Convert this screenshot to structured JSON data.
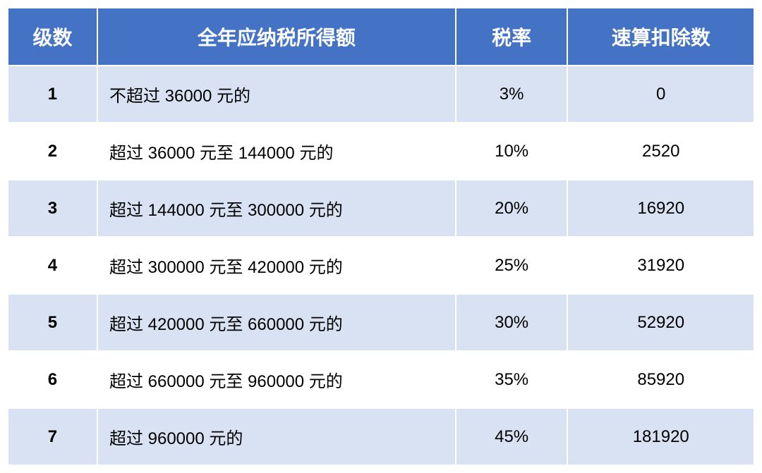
{
  "table": {
    "header_bg": "#4472c4",
    "header_color": "#ffffff",
    "row_odd_bg": "#d9e2f3",
    "row_even_bg": "#ffffff",
    "header_fontsize": 28,
    "cell_fontsize": 24,
    "text_color": "#000000",
    "columns": [
      "级数",
      "全年应纳税所得额",
      "税率",
      "速算扣除数"
    ],
    "rows": [
      {
        "level": "1",
        "desc": "不超过 36000 元的",
        "rate": "3%",
        "deduct": "0"
      },
      {
        "level": "2",
        "desc": "超过 36000 元至 144000 元的",
        "rate": "10%",
        "deduct": "2520"
      },
      {
        "level": "3",
        "desc": "超过 144000 元至 300000 元的",
        "rate": "20%",
        "deduct": "16920"
      },
      {
        "level": "4",
        "desc": "超过 300000 元至 420000 元的",
        "rate": "25%",
        "deduct": "31920"
      },
      {
        "level": "5",
        "desc": "超过 420000 元至 660000 元的",
        "rate": "30%",
        "deduct": "52920"
      },
      {
        "level": "6",
        "desc": "超过 660000 元至 960000 元的",
        "rate": "35%",
        "deduct": "85920"
      },
      {
        "level": "7",
        "desc": "超过 960000 元的",
        "rate": "45%",
        "deduct": "181920"
      }
    ]
  }
}
